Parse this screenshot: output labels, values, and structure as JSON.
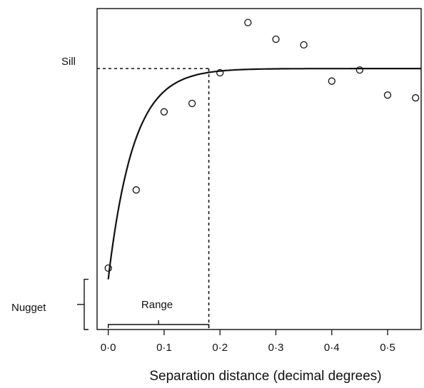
{
  "chart_data": {
    "type": "scatter",
    "title": "",
    "xlabel": "Separation distance (decimal degrees)",
    "ylabel": "",
    "xlim": [
      -0.02,
      0.56
    ],
    "ylim": [
      0.0,
      1.15
    ],
    "xticks": [
      0.0,
      0.1,
      0.2,
      0.3,
      0.4,
      0.5
    ],
    "xtick_labels": [
      "0·0",
      "0·1",
      "0·2",
      "0·3",
      "0·4",
      "0·5"
    ],
    "grid": false,
    "points": [
      {
        "x": 0.0,
        "y": 0.22
      },
      {
        "x": 0.05,
        "y": 0.5
      },
      {
        "x": 0.1,
        "y": 0.78
      },
      {
        "x": 0.15,
        "y": 0.81
      },
      {
        "x": 0.2,
        "y": 0.92
      },
      {
        "x": 0.25,
        "y": 1.1
      },
      {
        "x": 0.3,
        "y": 1.04
      },
      {
        "x": 0.35,
        "y": 1.02
      },
      {
        "x": 0.4,
        "y": 0.89
      },
      {
        "x": 0.45,
        "y": 0.93
      },
      {
        "x": 0.5,
        "y": 0.84
      },
      {
        "x": 0.55,
        "y": 0.83
      }
    ],
    "model": {
      "nugget": 0.18,
      "sill": 0.935,
      "range": 0.18,
      "decay": 0.045
    },
    "annotations": {
      "sill": "Sill",
      "nugget": "Nugget",
      "range": "Range"
    }
  }
}
